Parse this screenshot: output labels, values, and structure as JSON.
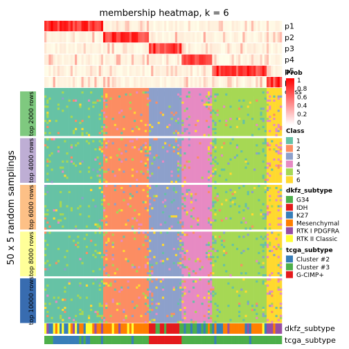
{
  "chart_data": {
    "type": "heatmap",
    "title": "membership heatmap, k = 6",
    "ylabel": "50 x 5 random samplings",
    "prob_rows": [
      "p1",
      "p2",
      "p3",
      "p4",
      "p5",
      "p6"
    ],
    "class_row_label": "class",
    "row_groups": [
      "top 2000 rows",
      "top 4000 rows",
      "top 6000 rows",
      "top 8000 rows",
      "top 10000 rows"
    ],
    "bottom_tracks": [
      "dkfz_subtype",
      "tcga_subtype"
    ],
    "class_sizes": [
      27,
      21,
      15,
      14,
      25,
      7
    ],
    "legends": {
      "prob": {
        "title": "Prob",
        "ticks": [
          "1",
          "0.8",
          "0.6",
          "0.4",
          "0.2",
          "0"
        ],
        "color_low": "#ffffff",
        "color_high": "#ff0000"
      },
      "class": {
        "title": "Class",
        "items": [
          {
            "label": "1",
            "color": "#66C2A5"
          },
          {
            "label": "2",
            "color": "#FC8D62"
          },
          {
            "label": "3",
            "color": "#8DA0CB"
          },
          {
            "label": "4",
            "color": "#E78AC3"
          },
          {
            "label": "5",
            "color": "#A6D854"
          },
          {
            "label": "6",
            "color": "#FFD92F"
          }
        ]
      },
      "dkfz_subtype": {
        "title": "dkfz_subtype",
        "items": [
          {
            "label": "G34",
            "color": "#4DAF4A"
          },
          {
            "label": "IDH",
            "color": "#E41A1C"
          },
          {
            "label": "K27",
            "color": "#377EB8"
          },
          {
            "label": "Mesenchymal",
            "color": "#FF7F00"
          },
          {
            "label": "RTK I PDGFRA",
            "color": "#984EA3"
          },
          {
            "label": "RTK II Classic",
            "color": "#FFFF33"
          }
        ]
      },
      "tcga_subtype": {
        "title": "tcga_subtype",
        "items": [
          {
            "label": "Cluster #2",
            "color": "#377EB8"
          },
          {
            "label": "Cluster #3",
            "color": "#4DAF4A"
          },
          {
            "label": "G-CIMP+",
            "color": "#E41A1C"
          }
        ]
      }
    }
  }
}
